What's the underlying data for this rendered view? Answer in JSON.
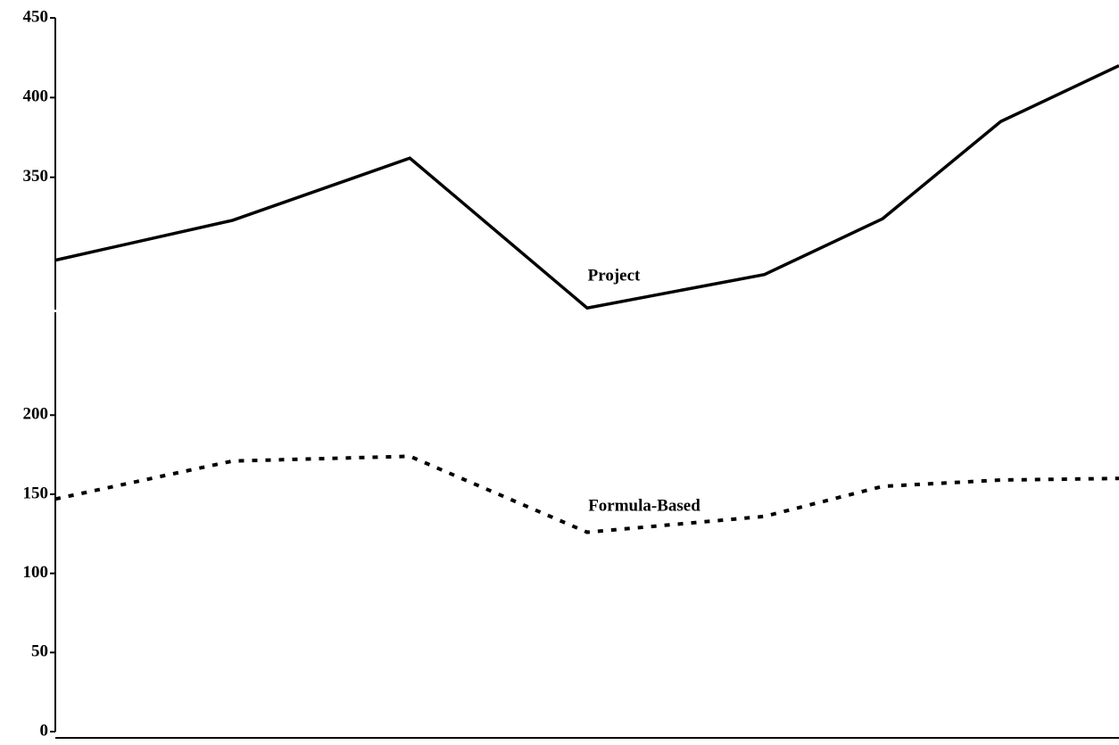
{
  "chart_data": [
    {
      "type": "line",
      "x": [
        0,
        3,
        6,
        9,
        12,
        14,
        16,
        18
      ],
      "xlim": [
        0,
        18
      ],
      "series": [
        {
          "name": "Project",
          "color": "#000000",
          "dash": "solid",
          "values": [
            298,
            323,
            362,
            268,
            289,
            324,
            385,
            420
          ]
        }
      ],
      "ylim": [
        267,
        450
      ],
      "yticks": [
        350,
        400,
        450
      ]
    },
    {
      "type": "line",
      "x": [
        0,
        3,
        6,
        9,
        12,
        14,
        16,
        18
      ],
      "xlim": [
        0,
        18
      ],
      "series": [
        {
          "name": "Formula-Based",
          "color": "#000000",
          "dash": "dotted",
          "values": [
            147,
            171,
            174,
            126,
            136,
            155,
            159,
            160
          ]
        }
      ],
      "ylim": [
        0,
        265
      ],
      "yticks": [
        0,
        50,
        100,
        150,
        200
      ]
    }
  ]
}
